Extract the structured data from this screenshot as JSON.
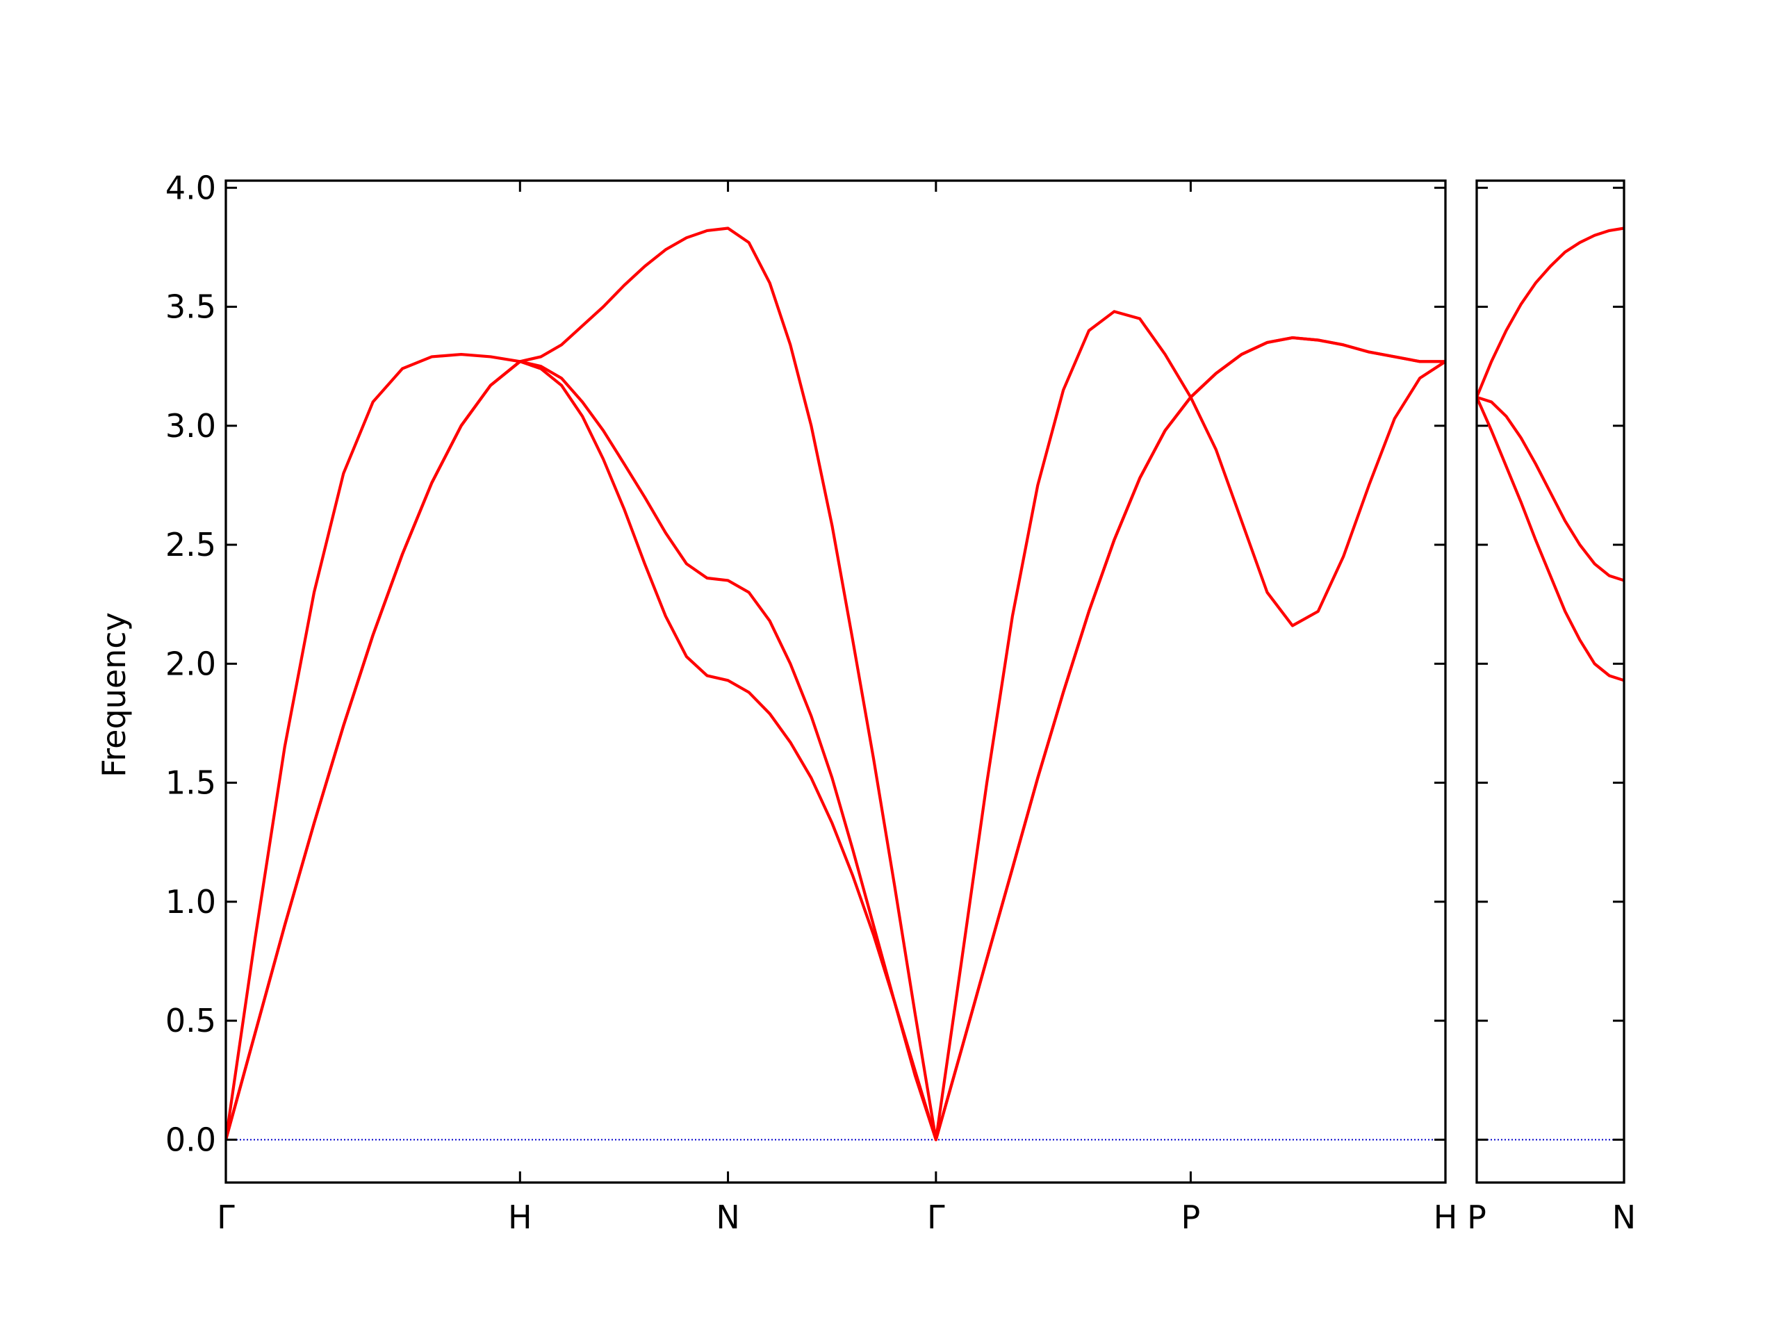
{
  "chart_data": [
    {
      "type": "line",
      "ylabel": "Frequency",
      "xlim": [
        0,
        4.146
      ],
      "ylim": [
        -0.18,
        4.03
      ],
      "xticks": [
        {
          "value": 0,
          "label": "Γ"
        },
        {
          "value": 1,
          "label": "H"
        },
        {
          "value": 1.707,
          "label": "N"
        },
        {
          "value": 2.414,
          "label": "Γ"
        },
        {
          "value": 3.28,
          "label": "P"
        },
        {
          "value": 4.146,
          "label": "H"
        }
      ],
      "yticks": [
        {
          "value": 0,
          "label": "0.0"
        },
        0.5,
        {
          "value": 1,
          "label": "1.0"
        },
        1.5,
        {
          "value": 2,
          "label": "2.0"
        },
        2.5,
        {
          "value": 3,
          "label": "3.0"
        },
        3.5,
        {
          "value": 4,
          "label": "4.0"
        }
      ],
      "hlines": [
        0
      ],
      "hline_color": "#0000cc",
      "x": [
        0,
        0.1,
        0.2,
        0.3,
        0.4,
        0.5,
        0.6,
        0.7,
        0.8,
        0.9,
        1,
        1.071,
        1.141,
        1.212,
        1.283,
        1.354,
        1.424,
        1.495,
        1.566,
        1.636,
        1.707,
        1.778,
        1.849,
        1.919,
        1.99,
        2.061,
        2.131,
        2.202,
        2.273,
        2.343,
        2.414,
        2.501,
        2.587,
        2.674,
        2.76,
        2.847,
        2.934,
        3.02,
        3.107,
        3.193,
        3.28,
        3.366,
        3.453,
        3.54,
        3.626,
        3.713,
        3.799,
        3.886,
        3.973,
        4.059,
        4.146
      ],
      "series": [
        {
          "color": "#ff0000",
          "values": [
            0,
            0.45,
            0.9,
            1.33,
            1.74,
            2.12,
            2.46,
            2.76,
            3.0,
            3.17,
            3.27,
            3.24,
            3.17,
            3.04,
            2.86,
            2.65,
            2.42,
            2.2,
            2.03,
            1.95,
            1.93,
            1.88,
            1.79,
            1.67,
            1.52,
            1.33,
            1.11,
            0.86,
            0.58,
            0.29,
            0,
            0.38,
            0.76,
            1.14,
            1.52,
            1.88,
            2.22,
            2.52,
            2.78,
            2.98,
            3.12,
            2.9,
            2.6,
            2.3,
            2.16,
            2.22,
            2.45,
            2.75,
            3.03,
            3.2,
            3.27
          ]
        },
        {
          "color": "#ff0000",
          "values": [
            0,
            0.45,
            0.9,
            1.33,
            1.74,
            2.12,
            2.46,
            2.76,
            3.0,
            3.17,
            3.27,
            3.25,
            3.2,
            3.1,
            2.98,
            2.84,
            2.7,
            2.55,
            2.42,
            2.36,
            2.35,
            2.3,
            2.18,
            2.0,
            1.78,
            1.52,
            1.22,
            0.9,
            0.58,
            0.27,
            0,
            0.38,
            0.76,
            1.14,
            1.52,
            1.88,
            2.22,
            2.52,
            2.78,
            2.98,
            3.12,
            3.22,
            3.3,
            3.35,
            3.37,
            3.36,
            3.34,
            3.31,
            3.29,
            3.27,
            3.27
          ]
        },
        {
          "color": "#ff0000",
          "values": [
            0,
            0.85,
            1.65,
            2.3,
            2.8,
            3.1,
            3.24,
            3.29,
            3.3,
            3.29,
            3.27,
            3.29,
            3.34,
            3.42,
            3.5,
            3.59,
            3.67,
            3.74,
            3.79,
            3.82,
            3.83,
            3.77,
            3.6,
            3.34,
            3.0,
            2.58,
            2.1,
            1.6,
            1.07,
            0.53,
            0,
            0.75,
            1.5,
            2.2,
            2.75,
            3.15,
            3.4,
            3.48,
            3.45,
            3.3,
            3.12,
            3.22,
            3.3,
            3.35,
            3.37,
            3.36,
            3.34,
            3.31,
            3.29,
            3.27,
            3.27
          ]
        }
      ]
    },
    {
      "type": "line",
      "xlim": [
        4.146,
        4.646
      ],
      "ylim": [
        -0.18,
        4.03
      ],
      "xticks": [
        {
          "value": 4.146,
          "label": "P"
        },
        {
          "value": 4.646,
          "label": "N"
        }
      ],
      "yticks": [
        0,
        0.5,
        1,
        1.5,
        2,
        2.5,
        3,
        3.5,
        4
      ],
      "hlines": [
        0
      ],
      "hline_color": "#0000cc",
      "x": [
        4.146,
        4.196,
        4.246,
        4.296,
        4.346,
        4.396,
        4.446,
        4.496,
        4.546,
        4.596,
        4.646
      ],
      "series": [
        {
          "color": "#ff0000",
          "values": [
            3.12,
            2.98,
            2.83,
            2.68,
            2.52,
            2.37,
            2.22,
            2.1,
            2.0,
            1.95,
            1.93
          ]
        },
        {
          "color": "#ff0000",
          "values": [
            3.12,
            3.1,
            3.04,
            2.95,
            2.84,
            2.72,
            2.6,
            2.5,
            2.42,
            2.37,
            2.35
          ]
        },
        {
          "color": "#ff0000",
          "values": [
            3.12,
            3.27,
            3.4,
            3.51,
            3.6,
            3.67,
            3.73,
            3.77,
            3.8,
            3.82,
            3.83
          ]
        }
      ]
    }
  ]
}
